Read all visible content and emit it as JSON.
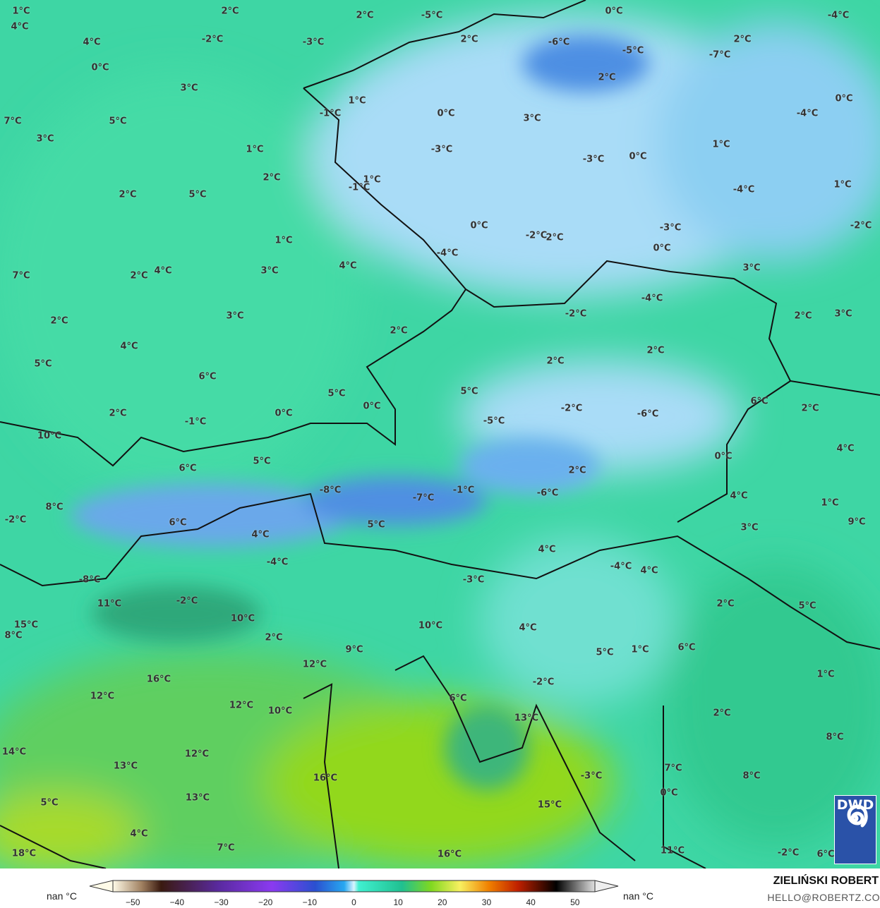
{
  "map": {
    "type": "temperature map",
    "unit": "°C",
    "colors": {
      "cold": "#9fd6f5",
      "very_cold": "#3f86e0",
      "mild": "#3fd9a8",
      "warm": "#2fc38a",
      "warmer": "#7fd12a",
      "sea": "#9bd720"
    },
    "labels": [
      "1°C",
      "4°C",
      "2°C",
      "2°C",
      "-5°C",
      "0°C",
      "-4°C",
      "4°C",
      "-2°C",
      "-3°C",
      "2°C",
      "-6°C",
      "-5°C",
      "-7°C",
      "2°C",
      "0°C",
      "3°C",
      "2°C",
      "0°C",
      "7°C",
      "5°C",
      "-1°C",
      "1°C",
      "0°C",
      "3°C",
      "-4°C",
      "3°C",
      "1°C",
      "-3°C",
      "-3°C",
      "0°C",
      "1°C",
      "2°C",
      "1°C",
      "-1°C",
      "2°C",
      "5°C",
      "-4°C",
      "1°C",
      "-2°C",
      "0°C",
      "-2°C",
      "2°C",
      "-3°C",
      "0°C",
      "1°C",
      "-4°C",
      "7°C",
      "2°C",
      "4°C",
      "3°C",
      "4°C",
      "3°C",
      "-4°C",
      "-2°C",
      "2°C",
      "3°C",
      "2°C",
      "3°C",
      "2°C",
      "4°C",
      "2°C",
      "2°C",
      "5°C",
      "6°C",
      "5°C",
      "5°C",
      "0°C",
      "6°C",
      "2°C",
      "2°C",
      "-1°C",
      "0°C",
      "-2°C",
      "-6°C",
      "-5°C",
      "10°C",
      "4°C",
      "0°C",
      "6°C",
      "5°C",
      "2°C",
      "-1°C",
      "-6°C",
      "-8°C",
      "-7°C",
      "4°C",
      "8°C",
      "1°C",
      "-2°C",
      "6°C",
      "5°C",
      "3°C",
      "9°C",
      "4°C",
      "4°C",
      "-4°C",
      "-4°C",
      "4°C",
      "-8°C",
      "-3°C",
      "11°C",
      "-2°C",
      "2°C",
      "5°C",
      "15°C",
      "8°C",
      "10°C",
      "10°C",
      "4°C",
      "2°C",
      "9°C",
      "1°C",
      "6°C",
      "5°C",
      "12°C",
      "16°C",
      "-2°C",
      "1°C",
      "12°C",
      "6°C",
      "12°C",
      "10°C",
      "2°C",
      "13°C",
      "8°C",
      "14°C",
      "12°C",
      "13°C",
      "16°C",
      "7°C",
      "-3°C",
      "8°C",
      "0°C",
      "13°C",
      "5°C",
      "15°C",
      "4°C",
      "7°C",
      "11°C",
      "16°C",
      "18°C",
      "-2°C",
      "6°C"
    ]
  },
  "logo": {
    "text": "DWD",
    "icon": "spiral-icon"
  },
  "legend": {
    "left_label": "nan °C",
    "right_label": "nan °C",
    "ticks": [
      "−50",
      "−40",
      "−30",
      "−20",
      "−10",
      "0",
      "10",
      "20",
      "30",
      "40",
      "50"
    ],
    "range": [
      -50,
      50
    ]
  },
  "credit": {
    "name": "ZIELIŃSKI ROBERT",
    "email": "HELLO@ROBERTZ.CO"
  }
}
